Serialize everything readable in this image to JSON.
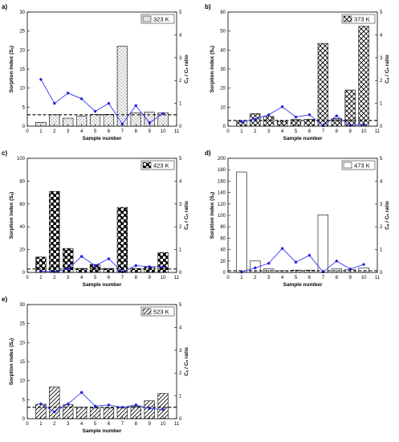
{
  "colors": {
    "bar_stroke": "#000000",
    "ratio_line": "#3a3af0",
    "ratio_marker": "#2020e0",
    "threshold_line": "#000000"
  },
  "chart_data": [
    {
      "panel_label": "a)",
      "type": "bar",
      "legend": "323 K",
      "bar_pattern": "dots",
      "xlabel": "Sample number",
      "ylabel": "Sorption index (Sₐ)",
      "y2label": "Cₐ / Cₙ ratio",
      "xlim": [
        0,
        11
      ],
      "ylim": [
        0,
        30
      ],
      "y2lim": [
        0,
        5
      ],
      "xticks": [
        0,
        1,
        2,
        3,
        4,
        5,
        6,
        7,
        8,
        9,
        10,
        11
      ],
      "yticks": [
        0,
        5,
        10,
        15,
        20,
        25,
        30
      ],
      "y2ticks": [
        0,
        1,
        2,
        3,
        4,
        5
      ],
      "categories": [
        1,
        2,
        3,
        4,
        5,
        6,
        7,
        8,
        9,
        10
      ],
      "values": [
        1.0,
        3.0,
        2.1,
        2.6,
        3.1,
        3.1,
        21.0,
        3.5,
        3.7,
        3.5
      ],
      "ratio_values": [
        2.05,
        1.0,
        1.45,
        1.2,
        0.65,
        1.0,
        0.1,
        0.9,
        0.15,
        0.55
      ],
      "threshold_y": 3.0
    },
    {
      "panel_label": "b)",
      "type": "bar",
      "legend": "373 K",
      "bar_pattern": "crosshatch",
      "xlabel": "Sample number",
      "ylabel": "Sorption index (Sₐ)",
      "y2label": "Cₐ / Cₙ ratio",
      "xlim": [
        0,
        11
      ],
      "ylim": [
        0,
        60
      ],
      "y2lim": [
        0,
        5
      ],
      "xticks": [
        0,
        1,
        2,
        3,
        4,
        5,
        6,
        7,
        8,
        9,
        10,
        11
      ],
      "yticks": [
        0,
        10,
        20,
        30,
        40,
        50,
        60
      ],
      "y2ticks": [
        0,
        1,
        2,
        3,
        4,
        5
      ],
      "categories": [
        1,
        2,
        3,
        4,
        5,
        6,
        7,
        8,
        9,
        10
      ],
      "values": [
        2.7,
        6.6,
        5.1,
        2.6,
        3.5,
        3.6,
        43.5,
        4.0,
        19.0,
        52.5
      ],
      "ratio_values": [
        0.2,
        0.3,
        0.5,
        0.85,
        0.4,
        0.5,
        0.02,
        0.45,
        0.03,
        0.08
      ],
      "threshold_y": 3.0
    },
    {
      "panel_label": "c)",
      "type": "bar",
      "legend": "423 K",
      "bar_pattern": "weave",
      "xlabel": "Sample number",
      "ylabel": "Sorption index (Sₐ)",
      "y2label": "Cₐ / Cₙ ratio",
      "xlim": [
        0,
        11
      ],
      "ylim": [
        0,
        100
      ],
      "y2lim": [
        0,
        5
      ],
      "xticks": [
        0,
        1,
        2,
        3,
        4,
        5,
        6,
        7,
        8,
        9,
        10,
        11
      ],
      "yticks": [
        0,
        20,
        40,
        60,
        80,
        100
      ],
      "y2ticks": [
        0,
        1,
        2,
        3,
        4,
        5
      ],
      "categories": [
        1,
        2,
        3,
        4,
        5,
        6,
        7,
        8,
        9,
        10
      ],
      "values": [
        13.5,
        71.0,
        21.0,
        3.5,
        7.0,
        3.5,
        57.0,
        3.5,
        5.0,
        17.5
      ],
      "ratio_values": [
        0.05,
        0.03,
        0.15,
        0.7,
        0.3,
        0.6,
        0.02,
        0.3,
        0.25,
        0.25
      ],
      "threshold_y": 3.0
    },
    {
      "panel_label": "d)",
      "type": "bar",
      "legend": "473 K",
      "bar_pattern": "empty",
      "xlabel": "Sample number",
      "ylabel": "Sorption index (Sₐ)",
      "y2label": "Cₐ / Cₙ ratio",
      "xlim": [
        0,
        11
      ],
      "ylim": [
        0,
        200
      ],
      "y2lim": [
        0,
        5
      ],
      "xticks": [
        0,
        1,
        2,
        3,
        4,
        5,
        6,
        7,
        8,
        9,
        10,
        11
      ],
      "yticks": [
        0,
        20,
        40,
        60,
        80,
        100,
        120,
        140,
        160,
        180,
        200
      ],
      "y2ticks": [
        0,
        1,
        2,
        3,
        4,
        5
      ],
      "categories": [
        1,
        2,
        3,
        4,
        5,
        6,
        7,
        8,
        9,
        10
      ],
      "values": [
        176.0,
        20.0,
        6.0,
        3.0,
        4.0,
        4.0,
        101.0,
        6.0,
        5.0,
        8.0
      ],
      "ratio_values": [
        0.02,
        0.2,
        0.4,
        1.05,
        0.45,
        0.75,
        0.02,
        0.5,
        0.15,
        0.35
      ],
      "threshold_y": 3.0
    },
    {
      "panel_label": "e)",
      "type": "bar",
      "legend": "523 K",
      "bar_pattern": "diagonal",
      "xlabel": "Sample number",
      "ylabel": "Sorption index (Sₐ)",
      "y2label": "Cₐ / Cₙ ratio",
      "xlim": [
        0,
        11
      ],
      "ylim": [
        0,
        30
      ],
      "y2lim": [
        0,
        5
      ],
      "xticks": [
        0,
        1,
        2,
        3,
        4,
        5,
        6,
        7,
        8,
        9,
        10,
        11
      ],
      "yticks": [
        0,
        5,
        10,
        15,
        20,
        25,
        30
      ],
      "y2ticks": [
        0,
        1,
        2,
        3,
        4,
        5
      ],
      "categories": [
        1,
        2,
        3,
        4,
        5,
        6,
        7,
        8,
        9,
        10
      ],
      "values": [
        3.8,
        8.3,
        3.7,
        3.0,
        2.8,
        2.8,
        2.8,
        3.2,
        4.7,
        6.6
      ],
      "ratio_values": [
        0.65,
        0.3,
        0.65,
        1.15,
        0.55,
        0.6,
        0.5,
        0.6,
        0.45,
        0.4
      ],
      "threshold_y": 3.0
    }
  ]
}
